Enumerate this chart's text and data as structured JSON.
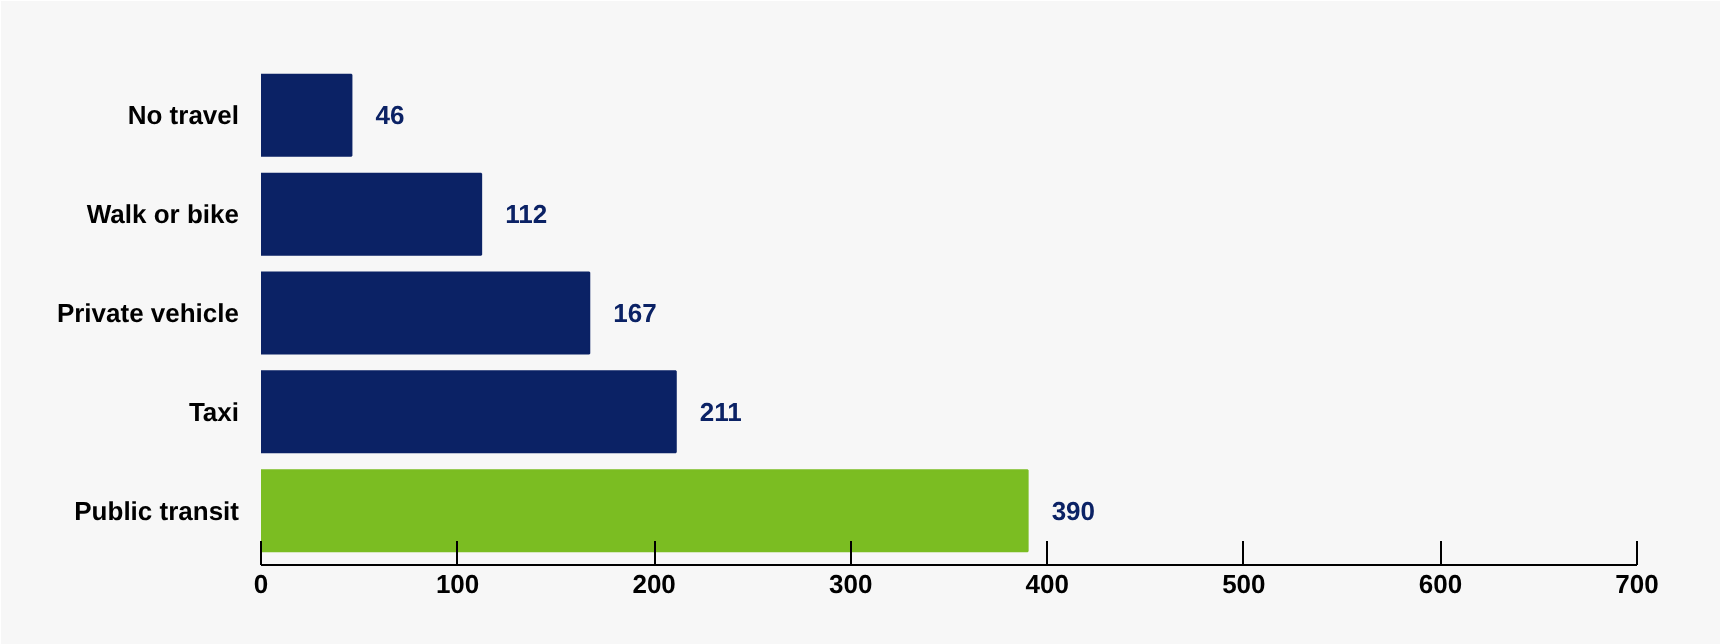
{
  "chart_data": {
    "type": "bar",
    "orientation": "horizontal",
    "categories": [
      "No travel",
      "Walk or bike",
      "Private vehicle",
      "Taxi",
      "Public transit"
    ],
    "values": [
      46,
      112,
      167,
      211,
      390
    ],
    "colors": [
      "#0b2265",
      "#0b2265",
      "#0b2265",
      "#0b2265",
      "#7bbd22"
    ],
    "xlim": [
      0,
      700
    ],
    "xticks": [
      0,
      100,
      200,
      300,
      400,
      500,
      600,
      700
    ],
    "data_labels": true,
    "grid": false
  }
}
